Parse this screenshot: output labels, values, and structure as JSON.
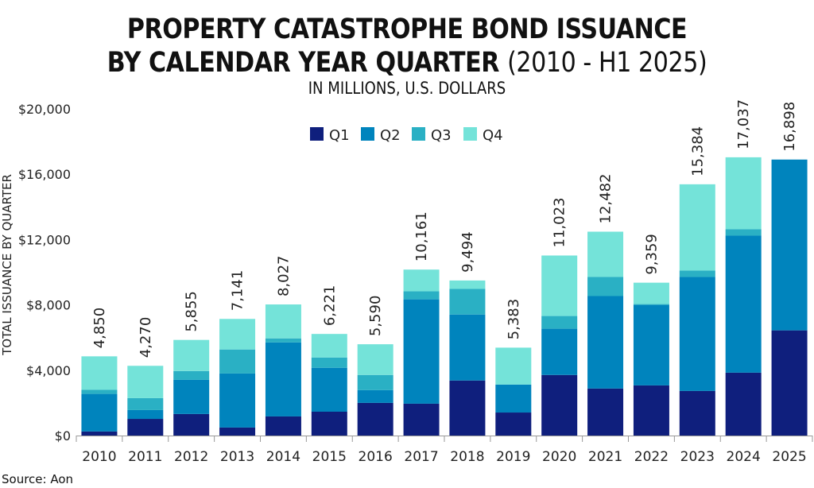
{
  "title_line1": "PROPERTY CATASTROPHE BOND ISSUANCE",
  "title_line2_bold": "BY CALENDAR YEAR QUARTER",
  "title_line2_light": "(2010 - H1 2025)",
  "subtitle": "IN MILLIONS, U.S. DOLLARS",
  "source": "Source: Aon",
  "colors": {
    "Q1": "#0f1f7d",
    "Q2": "#0084bd",
    "Q3": "#2ab0c4",
    "Q4": "#74e3d9"
  },
  "chart_data": {
    "type": "bar",
    "stacked": true,
    "title": "PROPERTY CATASTROPHE BOND ISSUANCE BY CALENDAR YEAR QUARTER (2010 - H1 2025)",
    "subtitle": "IN MILLIONS, U.S. DOLLARS",
    "xlabel": "",
    "ylabel": "TOTAL ISSUANCE BY QUARTER",
    "ylim": [
      0,
      20000
    ],
    "yticks": [
      0,
      4000,
      8000,
      12000,
      16000,
      20000
    ],
    "ytick_labels": [
      "$0",
      "$4,000",
      "$8,000",
      "$12,000",
      "$16,000",
      "$20,000"
    ],
    "grid": false,
    "legend_position": "top-center",
    "categories": [
      "2010",
      "2011",
      "2012",
      "2013",
      "2014",
      "2015",
      "2016",
      "2017",
      "2018",
      "2019",
      "2020",
      "2021",
      "2022",
      "2023",
      "2024",
      "2025"
    ],
    "series": [
      {
        "name": "Q1",
        "values": [
          250,
          1020,
          1320,
          490,
          1170,
          1460,
          2000,
          1950,
          3370,
          1410,
          3710,
          2880,
          3070,
          2730,
          3850,
          6440
        ]
      },
      {
        "name": "Q2",
        "values": [
          2300,
          540,
          2090,
          3310,
          4530,
          2690,
          780,
          6390,
          4040,
          1710,
          2830,
          5660,
          4930,
          6980,
          8390,
          10458
        ]
      },
      {
        "name": "Q3",
        "values": [
          250,
          730,
          540,
          1470,
          250,
          630,
          930,
          490,
          1570,
          0,
          780,
          1170,
          50,
          390,
          390,
          0
        ]
      },
      {
        "name": "Q4",
        "values": [
          2050,
          1980,
          1905,
          1871,
          2077,
          1441,
          1880,
          1331,
          514,
          2263,
          3703,
          2772,
          1309,
          5284,
          4407,
          0
        ]
      }
    ],
    "totals": [
      4850,
      4270,
      5855,
      7141,
      8027,
      6221,
      5590,
      10161,
      9494,
      5383,
      11023,
      12482,
      9359,
      15384,
      17037,
      16898
    ],
    "total_labels": [
      "4,850",
      "4,270",
      "5,855",
      "7,141",
      "8,027",
      "6,221",
      "5,590",
      "10,161",
      "9,494",
      "5,383",
      "11,023",
      "12,482",
      "9,359",
      "15,384",
      "17,037",
      "16,898"
    ]
  }
}
